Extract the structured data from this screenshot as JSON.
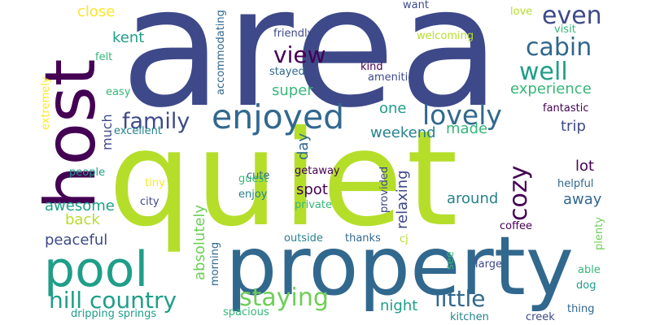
{
  "colors": {
    "purple": "#440154",
    "indigo": "#3e4989",
    "blue": "#31688e",
    "teal": "#26828e",
    "green": "#1f9e89",
    "emerald": "#35b779",
    "lime": "#6ece58",
    "yellowgreen": "#b5de2b",
    "yellow": "#fde725"
  },
  "words": [
    {
      "text": "area",
      "color": "indigo"
    },
    {
      "text": "quiet",
      "color": "yellowgreen"
    },
    {
      "text": "property",
      "color": "blue"
    },
    {
      "text": "host",
      "color": "purple"
    },
    {
      "text": "pool",
      "color": "green"
    },
    {
      "text": "enjoyed",
      "color": "blue"
    },
    {
      "text": "family",
      "color": "indigo"
    },
    {
      "text": "lovely",
      "color": "blue"
    },
    {
      "text": "view",
      "color": "purple"
    },
    {
      "text": "cabin",
      "color": "blue"
    },
    {
      "text": "even",
      "color": "indigo"
    },
    {
      "text": "well",
      "color": "green"
    },
    {
      "text": "hill country",
      "color": "green"
    },
    {
      "text": "staying",
      "color": "lime"
    },
    {
      "text": "little",
      "color": "blue"
    },
    {
      "text": "cozy",
      "color": "purple"
    },
    {
      "text": "close",
      "color": "yellow"
    },
    {
      "text": "kent",
      "color": "green"
    },
    {
      "text": "experience",
      "color": "emerald"
    },
    {
      "text": "super",
      "color": "emerald"
    },
    {
      "text": "one",
      "color": "green"
    },
    {
      "text": "weekend",
      "color": "teal"
    },
    {
      "text": "made",
      "color": "emerald"
    },
    {
      "text": "trip",
      "color": "indigo"
    },
    {
      "text": "lot",
      "color": "purple"
    },
    {
      "text": "away",
      "color": "blue"
    },
    {
      "text": "around",
      "color": "teal"
    },
    {
      "text": "spot",
      "color": "purple"
    },
    {
      "text": "awesome",
      "color": "green"
    },
    {
      "text": "back",
      "color": "yellowgreen"
    },
    {
      "text": "peaceful",
      "color": "indigo"
    },
    {
      "text": "relaxing",
      "color": "indigo"
    },
    {
      "text": "absolutely",
      "color": "lime"
    },
    {
      "text": "night",
      "color": "green"
    },
    {
      "text": "much",
      "color": "indigo"
    },
    {
      "text": "day",
      "color": "blue"
    },
    {
      "text": "want",
      "color": "indigo"
    },
    {
      "text": "love",
      "color": "yellowgreen"
    },
    {
      "text": "visit",
      "color": "emerald"
    },
    {
      "text": "friendly",
      "color": "indigo"
    },
    {
      "text": "welcoming",
      "color": "yellowgreen"
    },
    {
      "text": "felt",
      "color": "emerald"
    },
    {
      "text": "kind",
      "color": "purple"
    },
    {
      "text": "stayed",
      "color": "blue"
    },
    {
      "text": "amenities",
      "color": "indigo"
    },
    {
      "text": "easy",
      "color": "emerald"
    },
    {
      "text": "accommodating",
      "color": "blue"
    },
    {
      "text": "extremely",
      "color": "yellow"
    },
    {
      "text": "excellent",
      "color": "teal"
    },
    {
      "text": "fantastic",
      "color": "purple"
    },
    {
      "text": "cute",
      "color": "blue"
    },
    {
      "text": "getaway",
      "color": "purple"
    },
    {
      "text": "guest",
      "color": "emerald"
    },
    {
      "text": "people",
      "color": "green"
    },
    {
      "text": "tiny",
      "color": "yellow"
    },
    {
      "text": "city",
      "color": "indigo"
    },
    {
      "text": "enjoy",
      "color": "teal"
    },
    {
      "text": "private",
      "color": "emerald"
    },
    {
      "text": "provided",
      "color": "indigo"
    },
    {
      "text": "helpful",
      "color": "blue"
    },
    {
      "text": "coffee",
      "color": "purple"
    },
    {
      "text": "plenty",
      "color": "lime"
    },
    {
      "text": "outside",
      "color": "teal"
    },
    {
      "text": "thanks",
      "color": "blue"
    },
    {
      "text": "cj",
      "color": "yellowgreen"
    },
    {
      "text": "see",
      "color": "emerald"
    },
    {
      "text": "large",
      "color": "indigo"
    },
    {
      "text": "able",
      "color": "emerald"
    },
    {
      "text": "dog",
      "color": "green"
    },
    {
      "text": "morning",
      "color": "blue"
    },
    {
      "text": "spacious",
      "color": "emerald"
    },
    {
      "text": "dripping springs",
      "color": "green"
    },
    {
      "text": "kitchen",
      "color": "teal"
    },
    {
      "text": "creek",
      "color": "indigo"
    },
    {
      "text": "thing",
      "color": "blue"
    }
  ]
}
